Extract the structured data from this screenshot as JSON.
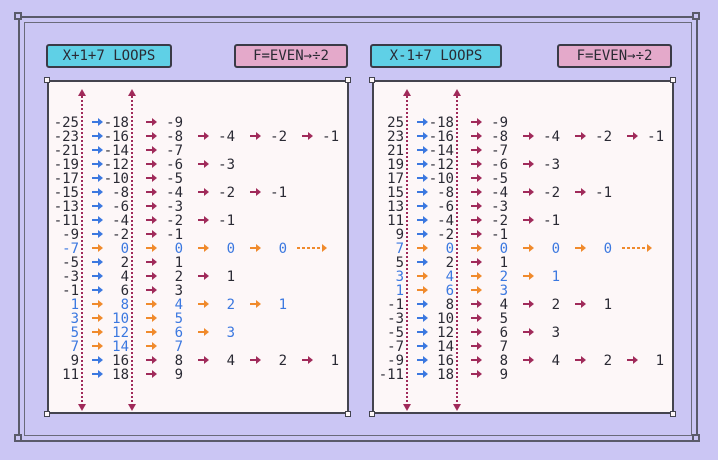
{
  "headers": {
    "left_loops": "X+1+7 LOOPS",
    "left_rule": "F=EVEN→÷2",
    "right_loops": "X-1+7 LOOPS",
    "right_rule": "F=EVEN→÷2"
  },
  "colors": {
    "background": "#cbc6f4",
    "panel": "#fdf7f8",
    "blue_arrow": "#3b78e0",
    "orange_arrow": "#f08a2c",
    "maroon_arrow": "#a02a5a",
    "text_dark": "#2a2a34",
    "text_blue": "#3b78e0",
    "header_blue": "#5fd0e6",
    "header_pink": "#e4a9ca"
  },
  "panels": [
    {
      "id": "left",
      "rows": [
        {
          "cells": [
            {
              "v": "-25",
              "c": "d"
            },
            {
              "v": "-18",
              "c": "d"
            },
            {
              "v": "-9",
              "c": "d"
            }
          ],
          "arrows": [
            "b",
            "m"
          ]
        },
        {
          "cells": [
            {
              "v": "-23",
              "c": "d"
            },
            {
              "v": "-16",
              "c": "d"
            },
            {
              "v": "-8",
              "c": "d"
            },
            {
              "v": "-4",
              "c": "d"
            },
            {
              "v": "-2",
              "c": "d"
            },
            {
              "v": "-1",
              "c": "d"
            }
          ],
          "arrows": [
            "b",
            "m",
            "m",
            "m",
            "m"
          ]
        },
        {
          "cells": [
            {
              "v": "-21",
              "c": "d"
            },
            {
              "v": "-14",
              "c": "d"
            },
            {
              "v": "-7",
              "c": "d"
            }
          ],
          "arrows": [
            "b",
            "m"
          ]
        },
        {
          "cells": [
            {
              "v": "-19",
              "c": "d"
            },
            {
              "v": "-12",
              "c": "d"
            },
            {
              "v": "-6",
              "c": "d"
            },
            {
              "v": "-3",
              "c": "d"
            }
          ],
          "arrows": [
            "b",
            "m",
            "m"
          ]
        },
        {
          "cells": [
            {
              "v": "-17",
              "c": "d"
            },
            {
              "v": "-10",
              "c": "d"
            },
            {
              "v": "-5",
              "c": "d"
            }
          ],
          "arrows": [
            "b",
            "m"
          ]
        },
        {
          "cells": [
            {
              "v": "-15",
              "c": "d"
            },
            {
              "v": "-8",
              "c": "d"
            },
            {
              "v": "-4",
              "c": "d"
            },
            {
              "v": "-2",
              "c": "d"
            },
            {
              "v": "-1",
              "c": "d"
            }
          ],
          "arrows": [
            "b",
            "m",
            "m",
            "m"
          ]
        },
        {
          "cells": [
            {
              "v": "-13",
              "c": "d"
            },
            {
              "v": "-6",
              "c": "d"
            },
            {
              "v": "-3",
              "c": "d"
            }
          ],
          "arrows": [
            "b",
            "m"
          ]
        },
        {
          "cells": [
            {
              "v": "-11",
              "c": "d"
            },
            {
              "v": "-4",
              "c": "d"
            },
            {
              "v": "-2",
              "c": "d"
            },
            {
              "v": "-1",
              "c": "d"
            }
          ],
          "arrows": [
            "b",
            "m",
            "m"
          ]
        },
        {
          "cells": [
            {
              "v": "-9",
              "c": "d"
            },
            {
              "v": "-2",
              "c": "d"
            },
            {
              "v": "-1",
              "c": "d"
            }
          ],
          "arrows": [
            "b",
            "m"
          ]
        },
        {
          "cells": [
            {
              "v": "-7",
              "c": "b"
            },
            {
              "v": "0",
              "c": "b"
            },
            {
              "v": "0",
              "c": "b"
            },
            {
              "v": "0",
              "c": "b"
            },
            {
              "v": "0",
              "c": "b"
            }
          ],
          "arrows": [
            "o",
            "o",
            "o",
            "o"
          ],
          "tail": "o"
        },
        {
          "cells": [
            {
              "v": "-5",
              "c": "d"
            },
            {
              "v": "2",
              "c": "d"
            },
            {
              "v": "1",
              "c": "d"
            }
          ],
          "arrows": [
            "b",
            "m"
          ]
        },
        {
          "cells": [
            {
              "v": "-3",
              "c": "d"
            },
            {
              "v": "4",
              "c": "d"
            },
            {
              "v": "2",
              "c": "d"
            },
            {
              "v": "1",
              "c": "d"
            }
          ],
          "arrows": [
            "b",
            "m",
            "m"
          ]
        },
        {
          "cells": [
            {
              "v": "-1",
              "c": "d"
            },
            {
              "v": "6",
              "c": "d"
            },
            {
              "v": "3",
              "c": "d"
            }
          ],
          "arrows": [
            "b",
            "m"
          ]
        },
        {
          "cells": [
            {
              "v": "1",
              "c": "b"
            },
            {
              "v": "8",
              "c": "b"
            },
            {
              "v": "4",
              "c": "b"
            },
            {
              "v": "2",
              "c": "b"
            },
            {
              "v": "1",
              "c": "b"
            }
          ],
          "arrows": [
            "o",
            "o",
            "o",
            "o"
          ]
        },
        {
          "cells": [
            {
              "v": "3",
              "c": "b"
            },
            {
              "v": "10",
              "c": "b"
            },
            {
              "v": "5",
              "c": "b"
            }
          ],
          "arrows": [
            "o",
            "o"
          ]
        },
        {
          "cells": [
            {
              "v": "5",
              "c": "b"
            },
            {
              "v": "12",
              "c": "b"
            },
            {
              "v": "6",
              "c": "b"
            },
            {
              "v": "3",
              "c": "b"
            }
          ],
          "arrows": [
            "o",
            "o",
            "o"
          ]
        },
        {
          "cells": [
            {
              "v": "7",
              "c": "b"
            },
            {
              "v": "14",
              "c": "b"
            },
            {
              "v": "7",
              "c": "b"
            }
          ],
          "arrows": [
            "o",
            "o"
          ]
        },
        {
          "cells": [
            {
              "v": "9",
              "c": "d"
            },
            {
              "v": "16",
              "c": "d"
            },
            {
              "v": "8",
              "c": "d"
            },
            {
              "v": "4",
              "c": "d"
            },
            {
              "v": "2",
              "c": "d"
            },
            {
              "v": "1",
              "c": "d"
            }
          ],
          "arrows": [
            "b",
            "m",
            "m",
            "m",
            "m"
          ]
        },
        {
          "cells": [
            {
              "v": "11",
              "c": "d"
            },
            {
              "v": "18",
              "c": "d"
            },
            {
              "v": "9",
              "c": "d"
            }
          ],
          "arrows": [
            "b",
            "m"
          ]
        }
      ]
    },
    {
      "id": "right",
      "rows": [
        {
          "cells": [
            {
              "v": "25",
              "c": "d"
            },
            {
              "v": "-18",
              "c": "d"
            },
            {
              "v": "-9",
              "c": "d"
            }
          ],
          "arrows": [
            "b",
            "m"
          ]
        },
        {
          "cells": [
            {
              "v": "23",
              "c": "d"
            },
            {
              "v": "-16",
              "c": "d"
            },
            {
              "v": "-8",
              "c": "d"
            },
            {
              "v": "-4",
              "c": "d"
            },
            {
              "v": "-2",
              "c": "d"
            },
            {
              "v": "-1",
              "c": "d"
            }
          ],
          "arrows": [
            "b",
            "m",
            "m",
            "m",
            "m"
          ]
        },
        {
          "cells": [
            {
              "v": "21",
              "c": "d"
            },
            {
              "v": "-14",
              "c": "d"
            },
            {
              "v": "-7",
              "c": "d"
            }
          ],
          "arrows": [
            "b",
            "m"
          ]
        },
        {
          "cells": [
            {
              "v": "19",
              "c": "d"
            },
            {
              "v": "-12",
              "c": "d"
            },
            {
              "v": "-6",
              "c": "d"
            },
            {
              "v": "-3",
              "c": "d"
            }
          ],
          "arrows": [
            "b",
            "m",
            "m"
          ]
        },
        {
          "cells": [
            {
              "v": "17",
              "c": "d"
            },
            {
              "v": "-10",
              "c": "d"
            },
            {
              "v": "-5",
              "c": "d"
            }
          ],
          "arrows": [
            "b",
            "m"
          ]
        },
        {
          "cells": [
            {
              "v": "15",
              "c": "d"
            },
            {
              "v": "-8",
              "c": "d"
            },
            {
              "v": "-4",
              "c": "d"
            },
            {
              "v": "-2",
              "c": "d"
            },
            {
              "v": "-1",
              "c": "d"
            }
          ],
          "arrows": [
            "b",
            "m",
            "m",
            "m"
          ]
        },
        {
          "cells": [
            {
              "v": "13",
              "c": "d"
            },
            {
              "v": "-6",
              "c": "d"
            },
            {
              "v": "-3",
              "c": "d"
            }
          ],
          "arrows": [
            "b",
            "m"
          ]
        },
        {
          "cells": [
            {
              "v": "11",
              "c": "d"
            },
            {
              "v": "-4",
              "c": "d"
            },
            {
              "v": "-2",
              "c": "d"
            },
            {
              "v": "-1",
              "c": "d"
            }
          ],
          "arrows": [
            "b",
            "m",
            "m"
          ]
        },
        {
          "cells": [
            {
              "v": "9",
              "c": "d"
            },
            {
              "v": "-2",
              "c": "d"
            },
            {
              "v": "-1",
              "c": "d"
            }
          ],
          "arrows": [
            "b",
            "m"
          ]
        },
        {
          "cells": [
            {
              "v": "7",
              "c": "b"
            },
            {
              "v": "0",
              "c": "b"
            },
            {
              "v": "0",
              "c": "b"
            },
            {
              "v": "0",
              "c": "b"
            },
            {
              "v": "0",
              "c": "b"
            }
          ],
          "arrows": [
            "o",
            "o",
            "o",
            "o"
          ],
          "tail": "o"
        },
        {
          "cells": [
            {
              "v": "5",
              "c": "d"
            },
            {
              "v": "2",
              "c": "d"
            },
            {
              "v": "1",
              "c": "d"
            }
          ],
          "arrows": [
            "b",
            "m"
          ]
        },
        {
          "cells": [
            {
              "v": "3",
              "c": "b"
            },
            {
              "v": "4",
              "c": "b"
            },
            {
              "v": "2",
              "c": "b"
            },
            {
              "v": "1",
              "c": "b"
            }
          ],
          "arrows": [
            "o",
            "o",
            "o"
          ]
        },
        {
          "cells": [
            {
              "v": "1",
              "c": "b"
            },
            {
              "v": "6",
              "c": "b"
            },
            {
              "v": "3",
              "c": "b"
            }
          ],
          "arrows": [
            "o",
            "o"
          ]
        },
        {
          "cells": [
            {
              "v": "-1",
              "c": "d"
            },
            {
              "v": "8",
              "c": "d"
            },
            {
              "v": "4",
              "c": "d"
            },
            {
              "v": "2",
              "c": "d"
            },
            {
              "v": "1",
              "c": "d"
            }
          ],
          "arrows": [
            "b",
            "m",
            "m",
            "m"
          ]
        },
        {
          "cells": [
            {
              "v": "-3",
              "c": "d"
            },
            {
              "v": "10",
              "c": "d"
            },
            {
              "v": "5",
              "c": "d"
            }
          ],
          "arrows": [
            "b",
            "m"
          ]
        },
        {
          "cells": [
            {
              "v": "-5",
              "c": "d"
            },
            {
              "v": "12",
              "c": "d"
            },
            {
              "v": "6",
              "c": "d"
            },
            {
              "v": "3",
              "c": "d"
            }
          ],
          "arrows": [
            "b",
            "m",
            "m"
          ]
        },
        {
          "cells": [
            {
              "v": "-7",
              "c": "d"
            },
            {
              "v": "14",
              "c": "d"
            },
            {
              "v": "7",
              "c": "d"
            }
          ],
          "arrows": [
            "b",
            "m"
          ]
        },
        {
          "cells": [
            {
              "v": "-9",
              "c": "d"
            },
            {
              "v": "16",
              "c": "d"
            },
            {
              "v": "8",
              "c": "d"
            },
            {
              "v": "4",
              "c": "d"
            },
            {
              "v": "2",
              "c": "d"
            },
            {
              "v": "1",
              "c": "d"
            }
          ],
          "arrows": [
            "b",
            "m",
            "m",
            "m",
            "m"
          ]
        },
        {
          "cells": [
            {
              "v": "-11",
              "c": "d"
            },
            {
              "v": "18",
              "c": "d"
            },
            {
              "v": "9",
              "c": "d"
            }
          ],
          "arrows": [
            "b",
            "m"
          ]
        }
      ]
    }
  ]
}
